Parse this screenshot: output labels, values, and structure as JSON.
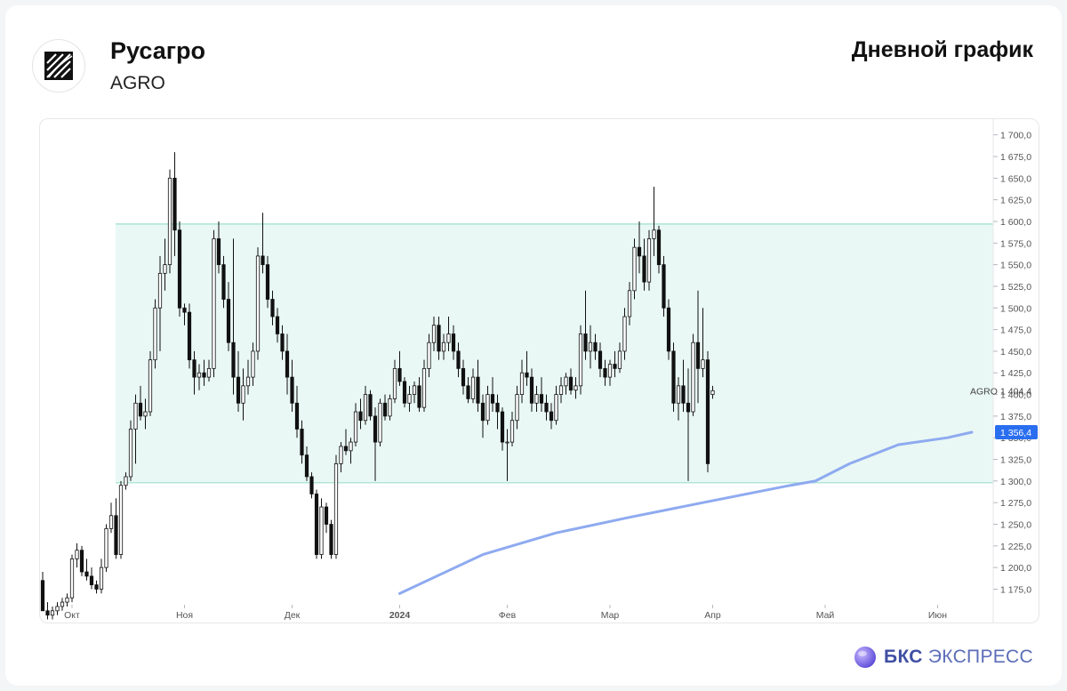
{
  "header": {
    "company": "Русагро",
    "ticker": "AGRO",
    "chart_title": "Дневной график"
  },
  "brand": {
    "name_bold": "БКС",
    "name_rest": "ЭКСПРЕСС"
  },
  "colors": {
    "band_fill": "#e9f8f4",
    "band_line": "#9edfcd",
    "ma_line": "#8eaaf0",
    "ma_label_bg": "#2a6ef0",
    "candle": "#111111"
  },
  "chart_data": {
    "type": "candlestick",
    "ylim": [
      1157,
      1712
    ],
    "y_ticks": [
      1175,
      1200,
      1225,
      1250,
      1275,
      1300,
      1325,
      1350,
      1375,
      1400,
      1425,
      1450,
      1475,
      1500,
      1525,
      1550,
      1575,
      1600,
      1625,
      1650,
      1675,
      1700
    ],
    "y_tick_labels": [
      "1 175,0",
      "1 200,0",
      "1 225,0",
      "1 250,0",
      "1 275,0",
      "1 300,0",
      "1 325,0",
      "1 350,0",
      "1 375,0",
      "1 400,0",
      "1 425,0",
      "1 450,0",
      "1 475,0",
      "1 500,0",
      "1 525,0",
      "1 550,0",
      "1 575,0",
      "1 600,0",
      "1 625,0",
      "1 650,0",
      "1 675,0",
      "1 700,0"
    ],
    "x_tick_labels": [
      "Окт",
      "Ноя",
      "Дек",
      "2024",
      "Фев",
      "Мар",
      "Апр",
      "Май",
      "Июн"
    ],
    "x_tick_bold": [
      false,
      false,
      false,
      true,
      false,
      false,
      false,
      false,
      false
    ],
    "x_tick_index": [
      6,
      29,
      51,
      73,
      95,
      116,
      137,
      160,
      183
    ],
    "range_band": {
      "low": 1298,
      "high": 1597
    },
    "last_price": 1404.4,
    "last_price_label": "1 404,4",
    "last_price_series": "AGRO",
    "moving_average": {
      "last_value": 1356.4,
      "last_value_label": "1 356,4",
      "start_index": 73,
      "start_value": 1170,
      "points": [
        [
          73,
          1170
        ],
        [
          90,
          1215
        ],
        [
          105,
          1240
        ],
        [
          120,
          1258
        ],
        [
          135,
          1275
        ],
        [
          152,
          1294
        ],
        [
          158,
          1300
        ],
        [
          165,
          1320
        ],
        [
          175,
          1342
        ],
        [
          185,
          1350
        ],
        [
          190,
          1356.4
        ]
      ]
    },
    "ohlc": [
      [
        1185,
        1195,
        1150,
        1150
      ],
      [
        1150,
        1160,
        1140,
        1145
      ],
      [
        1145,
        1155,
        1140,
        1150
      ],
      [
        1150,
        1160,
        1145,
        1155
      ],
      [
        1155,
        1165,
        1150,
        1160
      ],
      [
        1160,
        1170,
        1155,
        1165
      ],
      [
        1165,
        1215,
        1160,
        1210
      ],
      [
        1210,
        1228,
        1200,
        1220
      ],
      [
        1220,
        1225,
        1190,
        1195
      ],
      [
        1195,
        1210,
        1185,
        1190
      ],
      [
        1190,
        1200,
        1175,
        1180
      ],
      [
        1180,
        1185,
        1170,
        1175
      ],
      [
        1175,
        1210,
        1170,
        1200
      ],
      [
        1200,
        1250,
        1195,
        1245
      ],
      [
        1245,
        1275,
        1240,
        1260
      ],
      [
        1260,
        1280,
        1210,
        1215
      ],
      [
        1215,
        1300,
        1210,
        1295
      ],
      [
        1295,
        1310,
        1290,
        1305
      ],
      [
        1305,
        1370,
        1300,
        1360
      ],
      [
        1360,
        1400,
        1320,
        1390
      ],
      [
        1390,
        1410,
        1370,
        1375
      ],
      [
        1375,
        1395,
        1360,
        1380
      ],
      [
        1380,
        1450,
        1375,
        1440
      ],
      [
        1440,
        1510,
        1430,
        1500
      ],
      [
        1500,
        1560,
        1450,
        1540
      ],
      [
        1540,
        1580,
        1520,
        1550
      ],
      [
        1550,
        1660,
        1540,
        1650
      ],
      [
        1650,
        1680,
        1560,
        1590
      ],
      [
        1590,
        1600,
        1490,
        1500
      ],
      [
        1500,
        1505,
        1480,
        1495
      ],
      [
        1495,
        1505,
        1430,
        1440
      ],
      [
        1440,
        1450,
        1400,
        1420
      ],
      [
        1420,
        1435,
        1405,
        1425
      ],
      [
        1425,
        1440,
        1410,
        1420
      ],
      [
        1420,
        1440,
        1415,
        1430
      ],
      [
        1430,
        1590,
        1420,
        1580
      ],
      [
        1580,
        1600,
        1540,
        1550
      ],
      [
        1550,
        1560,
        1500,
        1510
      ],
      [
        1510,
        1530,
        1450,
        1460
      ],
      [
        1460,
        1580,
        1400,
        1420
      ],
      [
        1420,
        1450,
        1380,
        1390
      ],
      [
        1390,
        1430,
        1370,
        1410
      ],
      [
        1410,
        1440,
        1400,
        1420
      ],
      [
        1420,
        1460,
        1410,
        1450
      ],
      [
        1450,
        1570,
        1440,
        1560
      ],
      [
        1560,
        1610,
        1540,
        1550
      ],
      [
        1550,
        1560,
        1500,
        1510
      ],
      [
        1510,
        1520,
        1480,
        1490
      ],
      [
        1490,
        1500,
        1460,
        1470
      ],
      [
        1470,
        1480,
        1440,
        1450
      ],
      [
        1450,
        1470,
        1400,
        1420
      ],
      [
        1420,
        1440,
        1380,
        1390
      ],
      [
        1390,
        1410,
        1350,
        1360
      ],
      [
        1360,
        1370,
        1320,
        1330
      ],
      [
        1330,
        1340,
        1300,
        1305
      ],
      [
        1305,
        1310,
        1280,
        1285
      ],
      [
        1285,
        1290,
        1210,
        1215
      ],
      [
        1215,
        1280,
        1210,
        1270
      ],
      [
        1270,
        1275,
        1240,
        1250
      ],
      [
        1250,
        1255,
        1210,
        1215
      ],
      [
        1215,
        1330,
        1210,
        1320
      ],
      [
        1320,
        1345,
        1310,
        1340
      ],
      [
        1340,
        1360,
        1330,
        1335
      ],
      [
        1335,
        1350,
        1320,
        1345
      ],
      [
        1345,
        1390,
        1340,
        1380
      ],
      [
        1380,
        1395,
        1360,
        1370
      ],
      [
        1370,
        1410,
        1365,
        1400
      ],
      [
        1400,
        1405,
        1370,
        1375
      ],
      [
        1375,
        1385,
        1300,
        1345
      ],
      [
        1345,
        1395,
        1340,
        1390
      ],
      [
        1390,
        1400,
        1370,
        1375
      ],
      [
        1375,
        1400,
        1370,
        1395
      ],
      [
        1395,
        1440,
        1390,
        1430
      ],
      [
        1430,
        1450,
        1410,
        1415
      ],
      [
        1415,
        1420,
        1385,
        1390
      ],
      [
        1390,
        1410,
        1380,
        1400
      ],
      [
        1400,
        1415,
        1390,
        1410
      ],
      [
        1410,
        1420,
        1380,
        1385
      ],
      [
        1385,
        1440,
        1380,
        1430
      ],
      [
        1430,
        1470,
        1420,
        1460
      ],
      [
        1460,
        1490,
        1450,
        1480
      ],
      [
        1480,
        1490,
        1440,
        1450
      ],
      [
        1450,
        1470,
        1440,
        1460
      ],
      [
        1460,
        1490,
        1450,
        1470
      ],
      [
        1470,
        1480,
        1440,
        1450
      ],
      [
        1450,
        1460,
        1420,
        1430
      ],
      [
        1430,
        1440,
        1400,
        1410
      ],
      [
        1410,
        1420,
        1390,
        1395
      ],
      [
        1395,
        1430,
        1390,
        1420
      ],
      [
        1420,
        1440,
        1380,
        1390
      ],
      [
        1390,
        1400,
        1350,
        1370
      ],
      [
        1370,
        1410,
        1365,
        1400
      ],
      [
        1400,
        1420,
        1380,
        1390
      ],
      [
        1390,
        1400,
        1360,
        1380
      ],
      [
        1380,
        1385,
        1335,
        1345
      ],
      [
        1345,
        1360,
        1300,
        1345
      ],
      [
        1345,
        1380,
        1340,
        1370
      ],
      [
        1370,
        1410,
        1360,
        1400
      ],
      [
        1400,
        1440,
        1390,
        1425
      ],
      [
        1425,
        1450,
        1410,
        1420
      ],
      [
        1420,
        1430,
        1380,
        1390
      ],
      [
        1390,
        1410,
        1380,
        1400
      ],
      [
        1400,
        1420,
        1380,
        1390
      ],
      [
        1390,
        1400,
        1370,
        1380
      ],
      [
        1380,
        1390,
        1360,
        1370
      ],
      [
        1370,
        1410,
        1365,
        1400
      ],
      [
        1400,
        1420,
        1390,
        1410
      ],
      [
        1410,
        1425,
        1400,
        1420
      ],
      [
        1420,
        1430,
        1400,
        1405
      ],
      [
        1405,
        1420,
        1395,
        1410
      ],
      [
        1410,
        1480,
        1400,
        1470
      ],
      [
        1470,
        1520,
        1440,
        1450
      ],
      [
        1450,
        1480,
        1430,
        1460
      ],
      [
        1460,
        1470,
        1440,
        1450
      ],
      [
        1450,
        1460,
        1420,
        1430
      ],
      [
        1430,
        1440,
        1410,
        1420
      ],
      [
        1420,
        1440,
        1410,
        1435
      ],
      [
        1435,
        1450,
        1420,
        1430
      ],
      [
        1430,
        1460,
        1425,
        1450
      ],
      [
        1450,
        1500,
        1440,
        1490
      ],
      [
        1490,
        1530,
        1480,
        1520
      ],
      [
        1520,
        1580,
        1510,
        1570
      ],
      [
        1570,
        1600,
        1540,
        1560
      ],
      [
        1560,
        1580,
        1520,
        1530
      ],
      [
        1530,
        1590,
        1520,
        1580
      ],
      [
        1580,
        1640,
        1560,
        1590
      ],
      [
        1590,
        1595,
        1540,
        1550
      ],
      [
        1550,
        1560,
        1490,
        1500
      ],
      [
        1500,
        1510,
        1440,
        1450
      ],
      [
        1450,
        1460,
        1380,
        1390
      ],
      [
        1390,
        1420,
        1370,
        1410
      ],
      [
        1410,
        1440,
        1380,
        1390
      ],
      [
        1390,
        1430,
        1300,
        1380
      ],
      [
        1380,
        1470,
        1375,
        1460
      ],
      [
        1460,
        1520,
        1390,
        1430
      ],
      [
        1430,
        1500,
        1420,
        1440
      ],
      [
        1440,
        1450,
        1310,
        1320
      ],
      [
        1400,
        1410,
        1395,
        1404.4
      ]
    ]
  }
}
